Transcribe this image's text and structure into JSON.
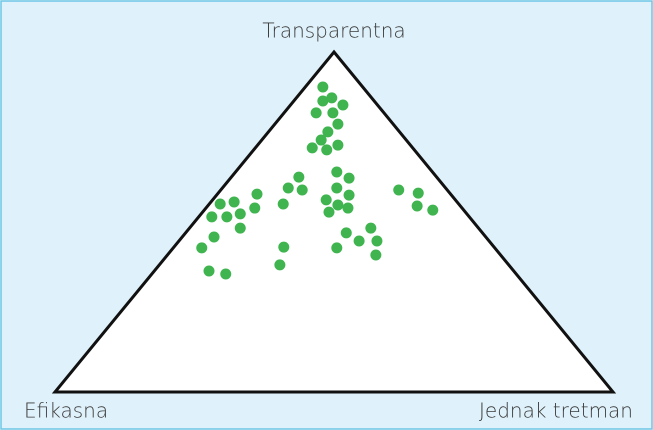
{
  "chart_data": {
    "type": "scatter",
    "corner_labels": {
      "top": "Transparentna",
      "left": "Efikasna",
      "right": "Jednak tretman"
    },
    "color": "#3fb44f",
    "xlim": [
      0,
      1
    ],
    "ylim": [
      0,
      1
    ],
    "x": [
      0.48,
      0.48,
      0.496,
      0.516,
      0.468,
      0.498,
      0.507,
      0.489,
      0.477,
      0.461,
      0.487,
      0.507,
      0.505,
      0.527,
      0.437,
      0.418,
      0.443,
      0.505,
      0.527,
      0.362,
      0.321,
      0.296,
      0.486,
      0.507,
      0.525,
      0.409,
      0.358,
      0.281,
      0.308,
      0.332,
      0.491,
      0.332,
      0.616,
      0.651,
      0.649,
      0.677,
      0.566,
      0.522,
      0.545,
      0.577,
      0.285,
      0.263,
      0.505,
      0.41,
      0.575,
      0.403,
      0.276,
      0.306
    ],
    "y": [
      0.897,
      0.856,
      0.865,
      0.844,
      0.821,
      0.821,
      0.788,
      0.765,
      0.741,
      0.718,
      0.712,
      0.726,
      0.647,
      0.629,
      0.632,
      0.6,
      0.594,
      0.6,
      0.579,
      0.582,
      0.559,
      0.553,
      0.565,
      0.55,
      0.541,
      0.553,
      0.541,
      0.515,
      0.515,
      0.524,
      0.529,
      0.482,
      0.594,
      0.585,
      0.547,
      0.535,
      0.482,
      0.468,
      0.444,
      0.444,
      0.456,
      0.424,
      0.424,
      0.426,
      0.403,
      0.374,
      0.356,
      0.347
    ]
  }
}
